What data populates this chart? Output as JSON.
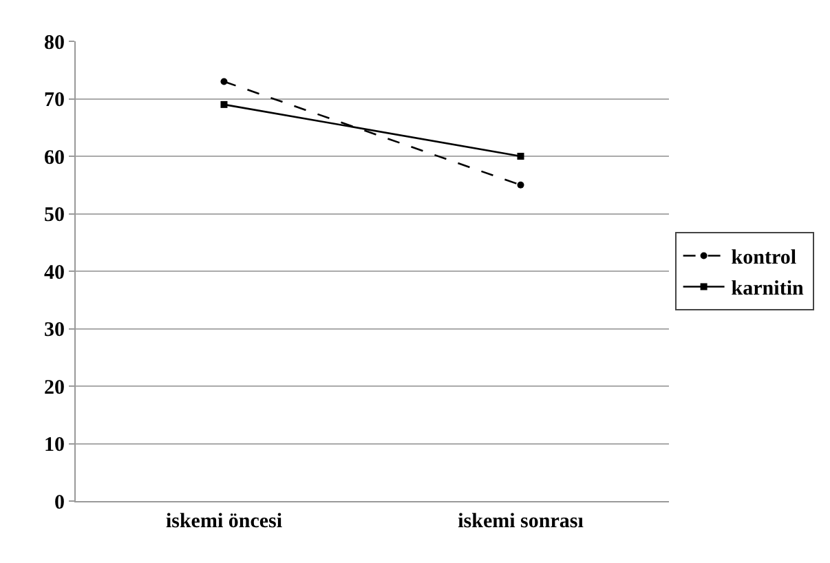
{
  "chart_data": {
    "type": "line",
    "categories": [
      "iskemi öncesi",
      "iskemi sonrası"
    ],
    "series": [
      {
        "name": "kontrol",
        "color": "#000000",
        "values": [
          73,
          55
        ],
        "line_style": "dashed",
        "marker": "circle"
      },
      {
        "name": "karnitin",
        "color": "#000000",
        "values": [
          69,
          60
        ],
        "line_style": "solid",
        "marker": "square"
      }
    ],
    "ylim": [
      0,
      80
    ],
    "yticks": [
      0,
      10,
      20,
      30,
      40,
      50,
      60,
      70,
      80
    ],
    "grid": "y",
    "legend": "right"
  }
}
